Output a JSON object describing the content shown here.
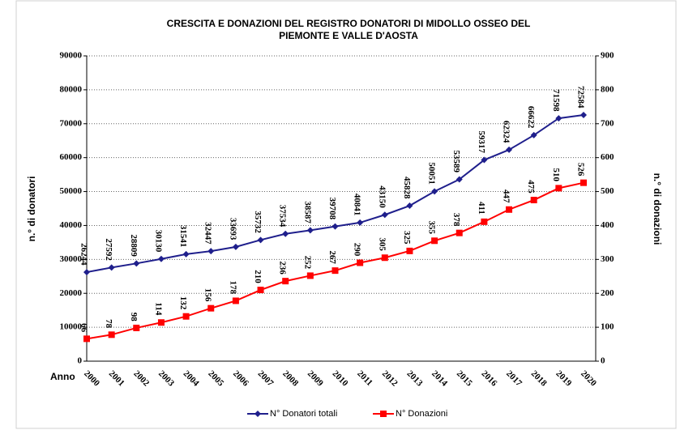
{
  "chart_data": {
    "type": "line",
    "title": "CRESCITA E DONAZIONI DEL REGISTRO DONATORI DI MIDOLLO OSSEO DEL PIEMONTE E VALLE D'AOSTA",
    "x_label": "Anno",
    "y_label": "n.° di donatori",
    "y2_label": "n.° di donazioni",
    "categories": [
      "2000",
      "2001",
      "2002",
      "2003",
      "2004",
      "2005",
      "2006",
      "2007",
      "2008",
      "2009",
      "2010",
      "2011",
      "2012",
      "2013",
      "2014",
      "2015",
      "2016",
      "2017",
      "2018",
      "2019",
      "2020"
    ],
    "series": [
      {
        "name": "N° Donatori totali",
        "color": "#1f1f8c",
        "marker": "diamond",
        "values": [
          26244,
          27592,
          28809,
          30130,
          31541,
          32447,
          33693,
          35732,
          37534,
          38587,
          39708,
          40841,
          43150,
          45828,
          50051,
          53589,
          59317,
          62324,
          66622,
          71598,
          72584
        ]
      },
      {
        "name": "N° Donazioni",
        "color": "#ff0000",
        "marker": "square",
        "axis": "y2",
        "values": [
          66,
          78,
          98,
          114,
          132,
          156,
          178,
          210,
          236,
          252,
          267,
          290,
          305,
          325,
          355,
          378,
          411,
          447,
          475,
          510,
          526
        ]
      }
    ],
    "ylim": [
      0,
      90000
    ],
    "yticks": [
      0,
      10000,
      20000,
      30000,
      40000,
      50000,
      60000,
      70000,
      80000,
      90000
    ],
    "y2lim": [
      0,
      900
    ],
    "y2ticks": [
      0,
      100,
      200,
      300,
      400,
      500,
      600,
      700,
      800,
      900
    ],
    "grid": true,
    "legend": "bottom"
  }
}
